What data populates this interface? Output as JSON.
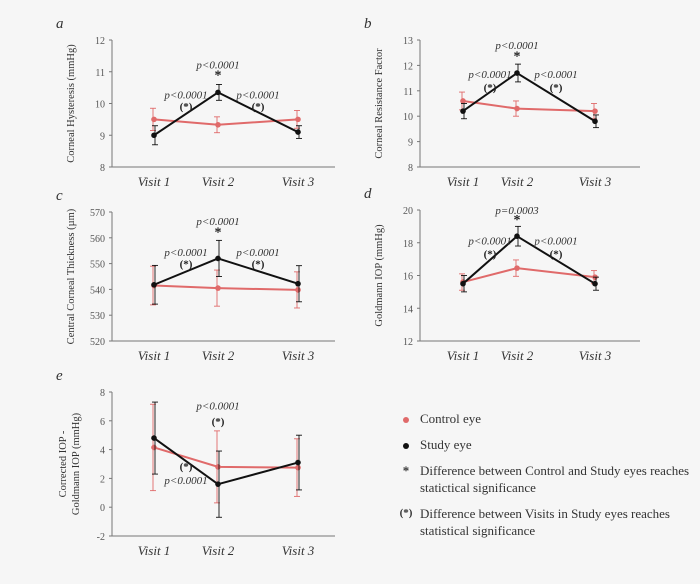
{
  "colors": {
    "control": "#e06a6a",
    "study": "#111111",
    "axis": "#777777",
    "bg": "#f6f6f6"
  },
  "chart_data": [
    {
      "type": "line",
      "panel_letter": "a",
      "categories": [
        "Visit 1",
        "Visit 2",
        "Visit 3"
      ],
      "ylabel": "Corneal Hysteresis (mmHg)",
      "ylim": [
        8,
        12
      ],
      "yticks": [
        "8",
        "9",
        "10",
        "11",
        "12"
      ],
      "series": [
        {
          "key": "control",
          "values": [
            9.5,
            9.33,
            9.5
          ],
          "errors": [
            0.35,
            0.25,
            0.28
          ]
        },
        {
          "key": "study",
          "values": [
            9.0,
            10.35,
            9.1
          ],
          "errors": [
            0.3,
            0.25,
            0.2
          ]
        }
      ],
      "annotations": [
        {
          "text": "p<0.0001",
          "x": 1,
          "y": 11.1,
          "style": "italic"
        },
        {
          "text": "*",
          "x": 1,
          "y": 10.75,
          "style": "bold"
        },
        {
          "text": "p<0.0001",
          "x": 0.5,
          "y": 10.15,
          "style": "italic"
        },
        {
          "text": "(*)",
          "x": 0.5,
          "y": 9.8,
          "style": "bold"
        },
        {
          "text": "p<0.0001",
          "x": 1.5,
          "y": 10.15,
          "style": "italic"
        },
        {
          "text": "(*)",
          "x": 1.5,
          "y": 9.8,
          "style": "bold"
        }
      ]
    },
    {
      "type": "line",
      "panel_letter": "b",
      "categories": [
        "Visit 1",
        "Visit 2",
        "Visit 3"
      ],
      "ylabel": "Corneal Resistance Factor",
      "ylim": [
        8,
        13
      ],
      "yticks": [
        "8",
        "9",
        "10",
        "11",
        "12",
        "13"
      ],
      "series": [
        {
          "key": "control",
          "values": [
            10.6,
            10.3,
            10.2
          ],
          "errors": [
            0.35,
            0.3,
            0.3
          ]
        },
        {
          "key": "study",
          "values": [
            10.2,
            11.7,
            9.8
          ],
          "errors": [
            0.3,
            0.35,
            0.25
          ]
        }
      ],
      "annotations": [
        {
          "text": "p<0.0001",
          "x": 1,
          "y": 12.65,
          "style": "italic"
        },
        {
          "text": "*",
          "x": 1,
          "y": 12.2,
          "style": "bold"
        },
        {
          "text": "p<0.0001",
          "x": 0.5,
          "y": 11.5,
          "style": "italic"
        },
        {
          "text": "(*)",
          "x": 0.5,
          "y": 11.0,
          "style": "bold"
        },
        {
          "text": "p<0.0001",
          "x": 1.5,
          "y": 11.5,
          "style": "italic"
        },
        {
          "text": "(*)",
          "x": 1.5,
          "y": 11.0,
          "style": "bold"
        }
      ]
    },
    {
      "type": "line",
      "panel_letter": "c",
      "categories": [
        "Visit 1",
        "Visit 2",
        "Visit 3"
      ],
      "ylabel": "Central Corneal Thickness (µm)",
      "ylim": [
        520,
        570
      ],
      "yticks": [
        "520",
        "530",
        "540",
        "550",
        "560",
        "570"
      ],
      "series": [
        {
          "key": "control",
          "values": [
            541.5,
            540.5,
            539.8
          ],
          "errors": [
            7.5,
            7.0,
            7.0
          ]
        },
        {
          "key": "study",
          "values": [
            541.8,
            552.0,
            542.2
          ],
          "errors": [
            7.5,
            7.0,
            7.0
          ]
        }
      ],
      "annotations": [
        {
          "text": "p<0.0001",
          "x": 1,
          "y": 565,
          "style": "italic"
        },
        {
          "text": "*",
          "x": 1,
          "y": 560.5,
          "style": "bold"
        },
        {
          "text": "p<0.0001",
          "x": 0.5,
          "y": 553,
          "style": "italic"
        },
        {
          "text": "(*)",
          "x": 0.5,
          "y": 548.5,
          "style": "bold"
        },
        {
          "text": "p<0.0001",
          "x": 1.5,
          "y": 553,
          "style": "italic"
        },
        {
          "text": "(*)",
          "x": 1.5,
          "y": 548.5,
          "style": "bold"
        }
      ]
    },
    {
      "type": "line",
      "panel_letter": "d",
      "categories": [
        "Visit 1",
        "Visit 2",
        "Visit 3"
      ],
      "ylabel": "Goldmann IOP (mmHg)",
      "ylim": [
        12,
        20
      ],
      "yticks": [
        "12",
        "14",
        "16",
        "18",
        "20"
      ],
      "series": [
        {
          "key": "control",
          "values": [
            15.6,
            16.45,
            15.9
          ],
          "errors": [
            0.5,
            0.5,
            0.4
          ]
        },
        {
          "key": "study",
          "values": [
            15.5,
            18.4,
            15.5
          ],
          "errors": [
            0.5,
            0.6,
            0.4
          ]
        }
      ],
      "annotations": [
        {
          "text": "p=0.0003",
          "x": 1,
          "y": 19.75,
          "style": "italic"
        },
        {
          "text": "*",
          "x": 1,
          "y": 19.15,
          "style": "bold"
        },
        {
          "text": "p<0.0001",
          "x": 0.5,
          "y": 17.9,
          "style": "italic"
        },
        {
          "text": "(*)",
          "x": 0.5,
          "y": 17.1,
          "style": "bold"
        },
        {
          "text": "p<0.0001",
          "x": 1.5,
          "y": 17.9,
          "style": "italic"
        },
        {
          "text": "(*)",
          "x": 1.5,
          "y": 17.1,
          "style": "bold"
        }
      ]
    },
    {
      "type": "line",
      "panel_letter": "e",
      "categories": [
        "Visit 1",
        "Visit 2",
        "Visit 3"
      ],
      "ylabel": "Corrected IOP - Goldmann IOP (mmHg)",
      "ylim": [
        -2,
        8
      ],
      "yticks": [
        "-2",
        "0",
        "2",
        "4",
        "6",
        "8"
      ],
      "series": [
        {
          "key": "control",
          "values": [
            4.15,
            2.8,
            2.75
          ],
          "errors": [
            3.0,
            2.5,
            2.0
          ]
        },
        {
          "key": "study",
          "values": [
            4.8,
            1.6,
            3.1
          ],
          "errors": [
            2.5,
            2.3,
            1.9
          ]
        }
      ],
      "annotations": [
        {
          "text": "p<0.0001",
          "x": 1,
          "y": 6.8,
          "style": "italic"
        },
        {
          "text": "(*)",
          "x": 1,
          "y": 5.7,
          "style": "bold"
        },
        {
          "text": "(*)",
          "x": 0.5,
          "y": 2.6,
          "style": "bold"
        },
        {
          "text": "p<0.0001",
          "x": 0.5,
          "y": 1.6,
          "style": "italic"
        }
      ]
    }
  ],
  "legend": {
    "items": [
      {
        "marker": "dot",
        "color": "#e06a6a",
        "text": "Control eye"
      },
      {
        "marker": "dot",
        "color": "#111111",
        "text": "Study eye"
      },
      {
        "marker": "*",
        "color": "#111111",
        "text": "Difference between Control and Study eyes reaches statictical significance"
      },
      {
        "marker": "(*)",
        "color": "#111111",
        "text": "Difference between Visits in Study eyes reaches statistical significance"
      }
    ]
  }
}
